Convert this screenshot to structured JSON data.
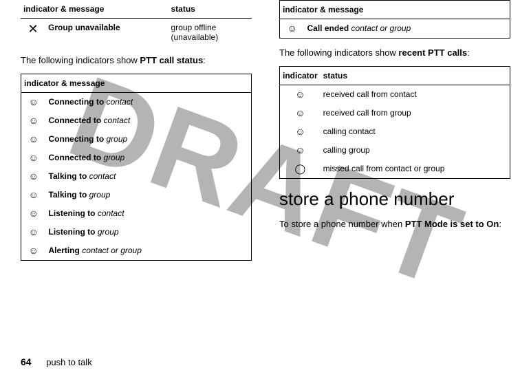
{
  "watermark": "DRAFT",
  "left": {
    "table1": {
      "h1": "indicator & message",
      "h2": "status",
      "row_icon": "✕",
      "row_msg": "Group unavailable",
      "row_status_l1": "group offline",
      "row_status_l2": "(unavailable)"
    },
    "para1_a": "The following indicators show ",
    "para1_b": "PTT call status",
    "para1_c": ":",
    "table2": {
      "h1": "indicator & message",
      "rows": [
        {
          "icon": "☺",
          "bold": "Connecting to",
          "ital": "contact"
        },
        {
          "icon": "☺",
          "bold": "Connected to",
          "ital": "contact"
        },
        {
          "icon": "☺",
          "bold": "Connecting to",
          "ital": "group"
        },
        {
          "icon": "☺",
          "bold": "Connected to",
          "ital": "group"
        },
        {
          "icon": "☺",
          "bold": "Talking to",
          "ital": "contact"
        },
        {
          "icon": "☺",
          "bold": "Talking to",
          "ital": "group"
        },
        {
          "icon": "☺",
          "bold": "Listening to",
          "ital": "contact"
        },
        {
          "icon": "☺",
          "bold": "Listening to",
          "ital": "group"
        },
        {
          "icon": "☺",
          "bold": "Alerting",
          "ital": "contact or group"
        }
      ]
    }
  },
  "right": {
    "table1": {
      "h1": "indicator & message",
      "row_icon": "☺",
      "row_bold": "Call ended",
      "row_ital": "contact or group"
    },
    "para1_a": "The following indicators show ",
    "para1_b": "recent PTT calls",
    "para1_c": ":",
    "table2": {
      "h1": "indicator",
      "h2": "status",
      "rows": [
        {
          "icon": "☺",
          "status": "received call from contact"
        },
        {
          "icon": "☺",
          "status": "received call from group"
        },
        {
          "icon": "☺",
          "status": "calling contact"
        },
        {
          "icon": "☺",
          "status": "calling group"
        },
        {
          "icon": "◯",
          "status": "missed call from contact or group"
        }
      ]
    },
    "heading": "store a phone number",
    "para2_a": "To store a phone number when ",
    "para2_b": "PTT Mode is set to On",
    "para2_c": ":"
  },
  "footer": {
    "page": "64",
    "section": "push to talk"
  }
}
